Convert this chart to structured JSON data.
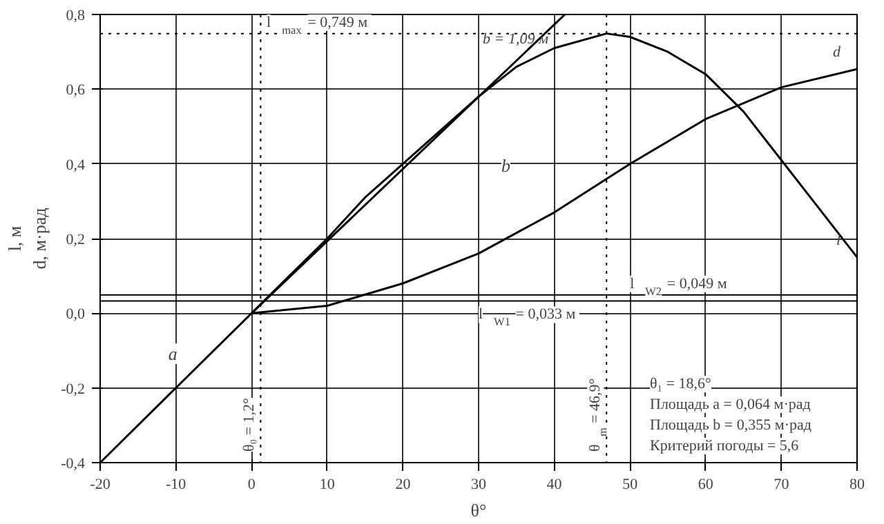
{
  "chart_data": {
    "type": "line",
    "xlabel": "θ°",
    "ylabel": "l, м\nd, м·рад",
    "xlim": [
      -20,
      80
    ],
    "ylim": [
      -0.4,
      0.8
    ],
    "xticks": [
      {
        "value": -20,
        "label": "-20"
      },
      {
        "value": -10,
        "label": "-10"
      },
      0,
      10,
      20,
      30,
      40,
      50,
      60,
      70,
      80
    ],
    "yticks": [
      {
        "value": -0.4,
        "label": "-0,4"
      },
      {
        "value": -0.2,
        "label": "-0,2"
      },
      {
        "value": 0,
        "label": "0,0"
      },
      {
        "value": 0.2,
        "label": "0,2"
      },
      {
        "value": 0.4,
        "label": "0,4"
      },
      {
        "value": 0.6,
        "label": "0,6"
      },
      {
        "value": 0.8,
        "label": "0,8"
      }
    ],
    "grid": true,
    "line_style": "solid",
    "series": [
      {
        "name": "l",
        "color": "#000000",
        "x": [
          -20,
          -10,
          0,
          5,
          10,
          15,
          20,
          25,
          30,
          35,
          40,
          46.9,
          50,
          55,
          60,
          65,
          70,
          75,
          80
        ],
        "values": [
          -0.4,
          -0.2,
          0,
          0.1,
          0.2,
          0.31,
          0.4,
          0.49,
          0.58,
          0.66,
          0.71,
          0.749,
          0.74,
          0.7,
          0.64,
          0.54,
          0.41,
          0.28,
          0.15
        ]
      },
      {
        "name": "d",
        "color": "#000000",
        "x": [
          0,
          10,
          20,
          30,
          40,
          50,
          60,
          70,
          80
        ],
        "values": [
          0,
          0.02,
          0.08,
          0.16,
          0.27,
          0.4,
          0.52,
          0.605,
          0.654
        ]
      },
      {
        "name": "b = 1,09 м",
        "color": "#000000",
        "x": [
          0,
          41.4
        ],
        "values": [
          0,
          0.8
        ]
      }
    ],
    "ref_lines": [
      {
        "axis": "y",
        "value": 0.749,
        "label": "l$_{max}$ = 0,749 м",
        "line_style": "dotted"
      },
      {
        "axis": "y",
        "value": 0.033,
        "label": "l$_{W1}$ = 0,033 м",
        "line_style": "solid"
      },
      {
        "axis": "y",
        "value": 0.049,
        "label": "l$_{W2}$ = 0,049 м",
        "line_style": "solid"
      },
      {
        "axis": "x",
        "value": 46.9,
        "label": "θ$_{m}$ = 46,9°",
        "line_style": "dotted"
      },
      {
        "axis": "x",
        "value": 1.2,
        "label": "θ₀ = 1,2°",
        "line_style": "dotted"
      }
    ],
    "annotations": [
      "a",
      "b",
      "θ₁ = 18,6°",
      "Площадь a = 0,064 м·рад",
      "Площадь b = 0,355 м·рад",
      "Критерий погоды = 5,6"
    ]
  }
}
